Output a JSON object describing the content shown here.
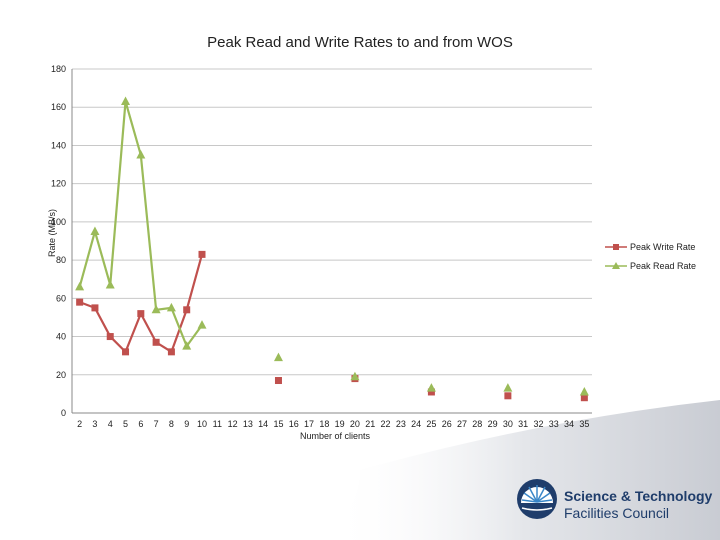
{
  "chart_data": {
    "type": "line",
    "title": "Peak Read and Write Rates to and from WOS",
    "xlabel": "Number of clients",
    "ylabel": "Rate (MB/s)",
    "ylim": [
      0,
      180
    ],
    "yticks": [
      0,
      20,
      40,
      60,
      80,
      100,
      120,
      140,
      160,
      180
    ],
    "categories": [
      "2",
      "3",
      "4",
      "5",
      "6",
      "7",
      "8",
      "9",
      "10",
      "11",
      "12",
      "13",
      "14",
      "15",
      "16",
      "17",
      "18",
      "19",
      "20",
      "21",
      "22",
      "23",
      "24",
      "25",
      "26",
      "27",
      "28",
      "29",
      "30",
      "31",
      "32",
      "33",
      "34",
      "35"
    ],
    "grid": true,
    "legend_position": "right",
    "series": [
      {
        "name": "Peak Write Rate",
        "color": "#c0504d",
        "marker": "square",
        "points": [
          [
            2,
            58
          ],
          [
            3,
            55
          ],
          [
            4,
            40
          ],
          [
            5,
            32
          ],
          [
            6,
            52
          ],
          [
            7,
            37
          ],
          [
            8,
            32
          ],
          [
            9,
            54
          ],
          [
            10,
            83
          ],
          [
            15,
            17
          ],
          [
            20,
            18
          ],
          [
            25,
            11
          ],
          [
            30,
            9
          ],
          [
            35,
            8
          ]
        ]
      },
      {
        "name": "Peak Read Rate",
        "color": "#9bbb59",
        "marker": "triangle",
        "points": [
          [
            2,
            66
          ],
          [
            3,
            95
          ],
          [
            4,
            67
          ],
          [
            5,
            163
          ],
          [
            6,
            135
          ],
          [
            7,
            54
          ],
          [
            8,
            55
          ],
          [
            9,
            35
          ],
          [
            10,
            46
          ],
          [
            15,
            29
          ],
          [
            20,
            19
          ],
          [
            25,
            13
          ],
          [
            30,
            13
          ],
          [
            35,
            11
          ]
        ]
      }
    ]
  },
  "logo": {
    "line1": "Science & Technology",
    "line2": "Facilities Council",
    "colors": {
      "navy": "#1f3d6b",
      "blue": "#3a87c8"
    }
  }
}
